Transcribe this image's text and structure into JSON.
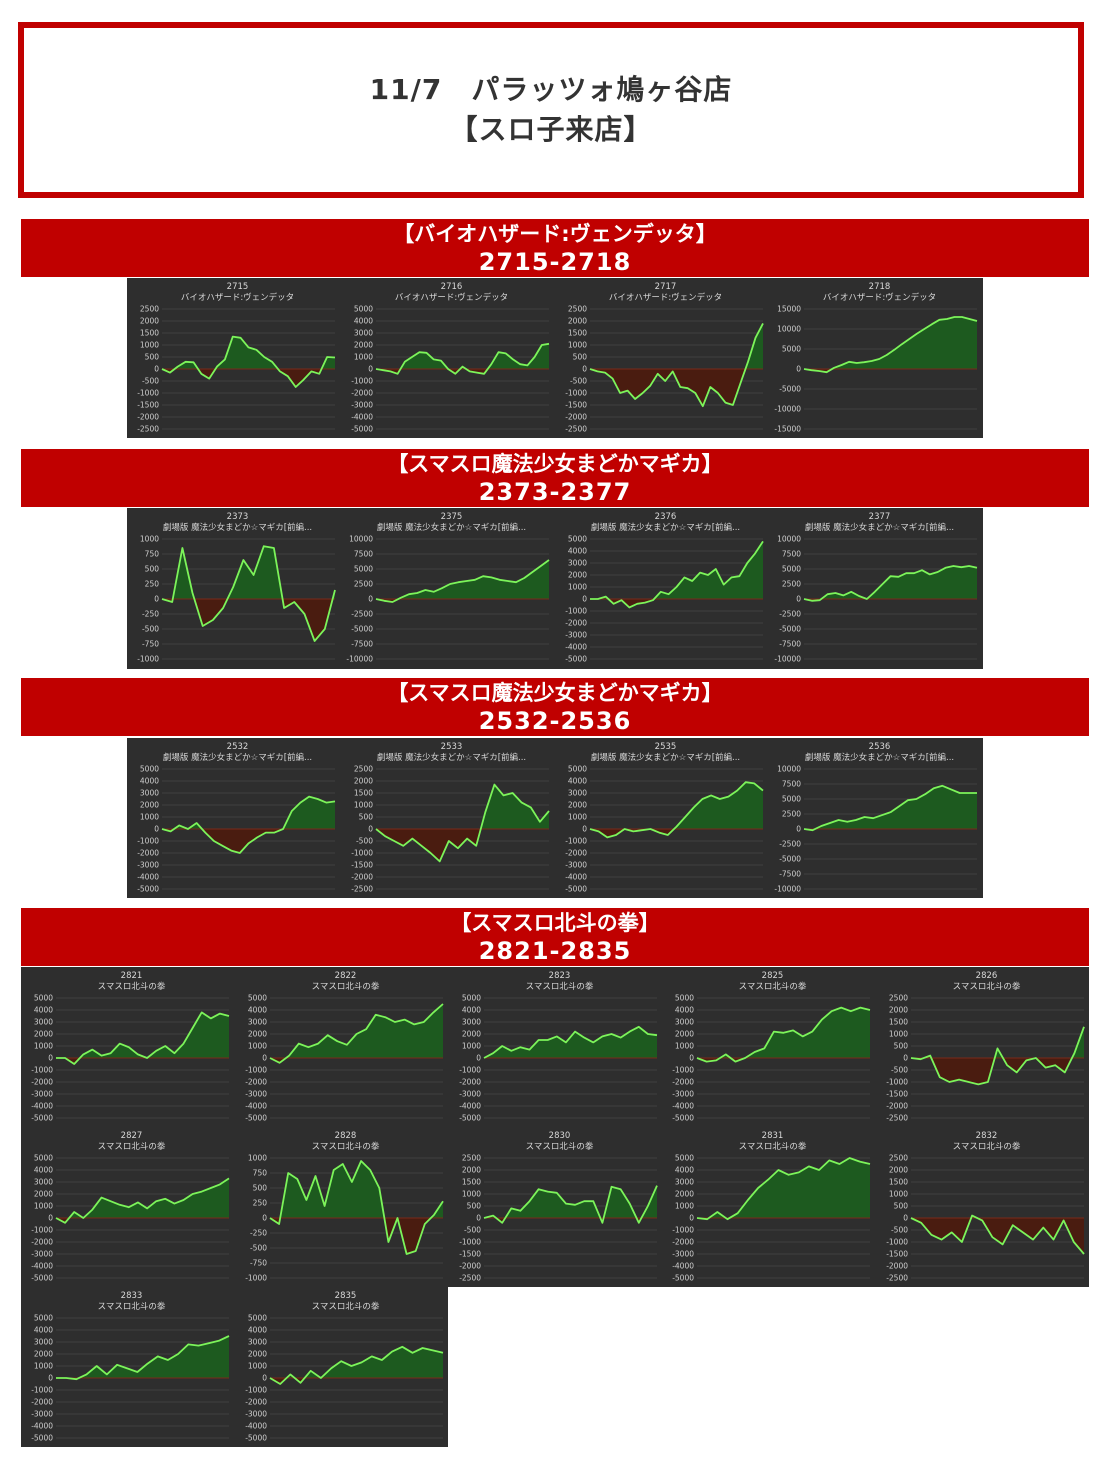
{
  "header": {
    "line1": "11/7　パラッツォ鳩ヶ谷店",
    "line2": "【スロ子来店】"
  },
  "sections": [
    {
      "label": "【バイオハザード:ヴェンデッタ】",
      "range": "2715-2718"
    },
    {
      "label": "【スマスロ魔法少女まどかマギカ】",
      "range": "2373-2377"
    },
    {
      "label": "【スマスロ魔法少女まどかマギカ】",
      "range": "2532-2536"
    },
    {
      "label": "【スマスロ北斗の拳】",
      "range": "2821-2835"
    }
  ],
  "colors": {
    "banner": "#c00000",
    "panel": "#2e2e2e",
    "line": "#7cf45a",
    "fill_pos": "#1d5a1f",
    "fill_neg": "#4a1c10"
  },
  "chart_data": [
    {
      "type": "area",
      "number": "2715",
      "title": "バイオハザード:ヴェンデッタ",
      "ylim": [
        -2500,
        2500
      ],
      "yticks": [
        2500,
        2000,
        1500,
        1000,
        500,
        0,
        -500,
        -1000,
        -1500,
        -2000,
        -2500
      ],
      "values": [
        0,
        -150,
        100,
        300,
        280,
        -200,
        -400,
        100,
        400,
        1350,
        1300,
        900,
        800,
        500,
        300,
        -100,
        -300,
        -750,
        -450,
        -100,
        -200,
        500,
        480
      ]
    },
    {
      "type": "area",
      "number": "2716",
      "title": "バイオハザード:ヴェンデッタ",
      "ylim": [
        -5000,
        5000
      ],
      "yticks": [
        5000,
        4000,
        3000,
        2000,
        1000,
        0,
        -1000,
        -2000,
        -3000,
        -4000,
        -5000
      ],
      "values": [
        0,
        -100,
        -200,
        -400,
        600,
        1000,
        1400,
        1350,
        800,
        700,
        0,
        -400,
        200,
        -200,
        -300,
        -400,
        400,
        1400,
        1300,
        800,
        400,
        300,
        1000,
        2000,
        2100
      ]
    },
    {
      "type": "area",
      "number": "2717",
      "title": "バイオハザード:ヴェンデッタ",
      "ylim": [
        -2500,
        2500
      ],
      "yticks": [
        2500,
        2000,
        1500,
        1000,
        500,
        0,
        -500,
        -1000,
        -1500,
        -2000,
        -2500
      ],
      "values": [
        0,
        -100,
        -150,
        -400,
        -1000,
        -900,
        -1250,
        -1000,
        -700,
        -200,
        -500,
        -100,
        -750,
        -800,
        -1000,
        -1550,
        -750,
        -1000,
        -1400,
        -1500,
        -600,
        300,
        1300,
        1900
      ]
    },
    {
      "type": "area",
      "number": "2718",
      "title": "バイオハザード:ヴェンデッタ",
      "ylim": [
        -15000,
        15000
      ],
      "yticks": [
        15000,
        10000,
        5000,
        0,
        -5000,
        -10000,
        -15000
      ],
      "values": [
        0,
        -300,
        -500,
        -800,
        300,
        1000,
        1800,
        1500,
        1700,
        2000,
        2500,
        3500,
        4800,
        6200,
        7500,
        8800,
        10000,
        11200,
        12300,
        12500,
        13000,
        13000,
        12500,
        12000
      ]
    },
    {
      "type": "area",
      "number": "2373",
      "title": "劇場版 魔法少女まどか☆マギカ[前編...",
      "ylim": [
        -1000,
        1000
      ],
      "yticks": [
        1000,
        750,
        500,
        250,
        0,
        -250,
        -500,
        -750,
        -1000
      ],
      "values": [
        0,
        -50,
        850,
        100,
        -450,
        -350,
        -150,
        200,
        650,
        400,
        880,
        850,
        -150,
        -50,
        -250,
        -700,
        -500,
        150
      ]
    },
    {
      "type": "area",
      "number": "2375",
      "title": "劇場版 魔法少女まどか☆マギカ[前編...",
      "ylim": [
        -10000,
        10000
      ],
      "yticks": [
        10000,
        7500,
        5000,
        2500,
        0,
        -2500,
        -5000,
        -7500,
        -10000
      ],
      "values": [
        0,
        -300,
        -500,
        200,
        800,
        1000,
        1500,
        1200,
        1800,
        2500,
        2800,
        3000,
        3200,
        3800,
        3600,
        3200,
        3000,
        2800,
        3500,
        4500,
        5500,
        6500
      ]
    },
    {
      "type": "area",
      "number": "2376",
      "title": "劇場版 魔法少女まどか☆マギカ[前編...",
      "ylim": [
        -5000,
        5000
      ],
      "yticks": [
        5000,
        4000,
        3000,
        2000,
        1000,
        0,
        -1000,
        -2000,
        -3000,
        -4000,
        -5000
      ],
      "values": [
        0,
        0,
        200,
        -400,
        -100,
        -700,
        -400,
        -300,
        -100,
        600,
        400,
        1000,
        1800,
        1500,
        2200,
        2000,
        2500,
        1200,
        1800,
        1900,
        3000,
        3800,
        4800
      ]
    },
    {
      "type": "area",
      "number": "2377",
      "title": "劇場版 魔法少女まどか☆マギカ[前編...",
      "ylim": [
        -10000,
        10000
      ],
      "yticks": [
        10000,
        7500,
        5000,
        2500,
        0,
        -2500,
        -5000,
        -7500,
        -10000
      ],
      "values": [
        0,
        -300,
        -200,
        800,
        1000,
        600,
        1200,
        500,
        0,
        1200,
        2500,
        3800,
        3700,
        4300,
        4300,
        4800,
        4100,
        4500,
        5200,
        5500,
        5300,
        5500,
        5200
      ]
    },
    {
      "type": "area",
      "number": "2532",
      "title": "劇場版 魔法少女まどか☆マギカ[前編...",
      "ylim": [
        -5000,
        5000
      ],
      "yticks": [
        5000,
        4000,
        3000,
        2000,
        1000,
        0,
        -1000,
        -2000,
        -3000,
        -4000,
        -5000
      ],
      "values": [
        0,
        -200,
        300,
        0,
        500,
        -300,
        -1000,
        -1400,
        -1800,
        -2000,
        -1200,
        -700,
        -300,
        -300,
        0,
        1500,
        2200,
        2700,
        2500,
        2200,
        2300
      ]
    },
    {
      "type": "area",
      "number": "2533",
      "title": "劇場版 魔法少女まどか☆マギカ[前編...",
      "ylim": [
        -2500,
        2500
      ],
      "yticks": [
        2500,
        2000,
        1500,
        1000,
        500,
        0,
        -500,
        -1000,
        -1500,
        -2000,
        -2500
      ],
      "values": [
        0,
        -300,
        -500,
        -700,
        -400,
        -700,
        -1000,
        -1350,
        -500,
        -800,
        -400,
        -700,
        700,
        1850,
        1400,
        1500,
        1100,
        900,
        300,
        750
      ]
    },
    {
      "type": "area",
      "number": "2535",
      "title": "劇場版 魔法少女まどか☆マギカ[前編...",
      "ylim": [
        -5000,
        5000
      ],
      "yticks": [
        5000,
        4000,
        3000,
        2000,
        1000,
        0,
        -1000,
        -2000,
        -3000,
        -4000,
        -5000
      ],
      "values": [
        0,
        -200,
        -700,
        -500,
        0,
        -200,
        -100,
        0,
        -300,
        -500,
        200,
        1000,
        1800,
        2500,
        2800,
        2500,
        2700,
        3200,
        3900,
        3800,
        3200
      ]
    },
    {
      "type": "area",
      "number": "2536",
      "title": "劇場版 魔法少女まどか☆マギカ[前編...",
      "ylim": [
        -10000,
        10000
      ],
      "yticks": [
        10000,
        7500,
        5000,
        2500,
        0,
        -2500,
        -5000,
        -7500,
        -10000
      ],
      "values": [
        0,
        -200,
        500,
        1000,
        1500,
        1200,
        1500,
        2000,
        1800,
        2300,
        2800,
        3800,
        4800,
        5000,
        5800,
        6800,
        7200,
        6600,
        6000,
        6000,
        6000
      ]
    },
    {
      "type": "area",
      "number": "2821",
      "title": "スマスロ北斗の拳",
      "ylim": [
        -5000,
        5000
      ],
      "yticks": [
        5000,
        4000,
        3000,
        2000,
        1000,
        0,
        -1000,
        -2000,
        -3000,
        -4000,
        -5000
      ],
      "values": [
        0,
        0,
        -500,
        300,
        700,
        200,
        400,
        1200,
        900,
        300,
        0,
        600,
        1000,
        400,
        1200,
        2500,
        3800,
        3300,
        3700,
        3500
      ]
    },
    {
      "type": "area",
      "number": "2822",
      "title": "スマスロ北斗の拳",
      "ylim": [
        -5000,
        5000
      ],
      "yticks": [
        5000,
        4000,
        3000,
        2000,
        1000,
        0,
        -1000,
        -2000,
        -3000,
        -4000,
        -5000
      ],
      "values": [
        0,
        -400,
        200,
        1200,
        900,
        1200,
        1900,
        1400,
        1100,
        2000,
        2400,
        3600,
        3400,
        3000,
        3200,
        2800,
        3000,
        3800,
        4500
      ]
    },
    {
      "type": "area",
      "number": "2823",
      "title": "スマスロ北斗の拳",
      "ylim": [
        -5000,
        5000
      ],
      "yticks": [
        5000,
        4000,
        3000,
        2000,
        1000,
        0,
        -1000,
        -2000,
        -3000,
        -4000,
        -5000
      ],
      "values": [
        0,
        400,
        1000,
        600,
        900,
        700,
        1500,
        1500,
        1800,
        1300,
        2200,
        1700,
        1300,
        1800,
        2000,
        1700,
        2200,
        2600,
        2000,
        1900
      ]
    },
    {
      "type": "area",
      "number": "2825",
      "title": "スマスロ北斗の拳",
      "ylim": [
        -5000,
        5000
      ],
      "yticks": [
        5000,
        4000,
        3000,
        2000,
        1000,
        0,
        -1000,
        -2000,
        -3000,
        -4000,
        -5000
      ],
      "values": [
        0,
        -300,
        -200,
        300,
        -300,
        0,
        500,
        800,
        2200,
        2100,
        2300,
        1800,
        2200,
        3200,
        3900,
        4200,
        3900,
        4200,
        4000
      ]
    },
    {
      "type": "area",
      "number": "2826",
      "title": "スマスロ北斗の拳",
      "ylim": [
        -2500,
        2500
      ],
      "yticks": [
        2500,
        2000,
        1500,
        1000,
        500,
        0,
        -500,
        -1000,
        -1500,
        -2000,
        -2500
      ],
      "values": [
        0,
        -50,
        100,
        -800,
        -1000,
        -900,
        -1000,
        -1100,
        -1000,
        400,
        -300,
        -600,
        -100,
        0,
        -400,
        -300,
        -600,
        200,
        1300
      ]
    },
    {
      "type": "area",
      "number": "2827",
      "title": "スマスロ北斗の拳",
      "ylim": [
        -5000,
        5000
      ],
      "yticks": [
        5000,
        4000,
        3000,
        2000,
        1000,
        0,
        -1000,
        -2000,
        -3000,
        -4000,
        -5000
      ],
      "values": [
        0,
        -400,
        500,
        0,
        700,
        1700,
        1400,
        1100,
        900,
        1300,
        800,
        1400,
        1600,
        1200,
        1500,
        2000,
        2200,
        2500,
        2800,
        3300
      ]
    },
    {
      "type": "area",
      "number": "2828",
      "title": "スマスロ北斗の拳",
      "ylim": [
        -1000,
        1000
      ],
      "yticks": [
        1000,
        750,
        500,
        250,
        0,
        -250,
        -500,
        -750,
        -1000
      ],
      "values": [
        0,
        -100,
        750,
        650,
        300,
        700,
        200,
        800,
        900,
        600,
        950,
        800,
        500,
        -400,
        0,
        -600,
        -550,
        -100,
        50,
        280
      ]
    },
    {
      "type": "area",
      "number": "2830",
      "title": "スマスロ北斗の拳",
      "ylim": [
        -2500,
        2500
      ],
      "yticks": [
        2500,
        2000,
        1500,
        1000,
        500,
        0,
        -500,
        -1000,
        -1500,
        -2000,
        -2500
      ],
      "values": [
        0,
        100,
        -200,
        400,
        300,
        700,
        1200,
        1100,
        1050,
        600,
        550,
        700,
        700,
        -200,
        1300,
        1200,
        600,
        -200,
        500,
        1350
      ]
    },
    {
      "type": "area",
      "number": "2831",
      "title": "スマスロ北斗の拳",
      "ylim": [
        -5000,
        5000
      ],
      "yticks": [
        5000,
        4000,
        3000,
        2000,
        1000,
        0,
        -1000,
        -2000,
        -3000,
        -4000,
        -5000
      ],
      "values": [
        0,
        -100,
        500,
        -100,
        400,
        1500,
        2500,
        3200,
        4000,
        3600,
        3800,
        4300,
        4000,
        4800,
        4500,
        5000,
        4700,
        4500
      ]
    },
    {
      "type": "area",
      "number": "2832",
      "title": "スマスロ北斗の拳",
      "ylim": [
        -2500,
        2500
      ],
      "yticks": [
        2500,
        2000,
        1500,
        1000,
        500,
        0,
        -500,
        -1000,
        -1500,
        -2000,
        -2500
      ],
      "values": [
        0,
        -200,
        -700,
        -900,
        -600,
        -1000,
        100,
        -100,
        -800,
        -1100,
        -300,
        -600,
        -900,
        -400,
        -900,
        -100,
        -1000,
        -1500
      ]
    },
    {
      "type": "area",
      "number": "2833",
      "title": "スマスロ北斗の拳",
      "ylim": [
        -5000,
        5000
      ],
      "yticks": [
        5000,
        4000,
        3000,
        2000,
        1000,
        0,
        -1000,
        -2000,
        -3000,
        -4000,
        -5000
      ],
      "values": [
        0,
        0,
        -100,
        300,
        1000,
        300,
        1100,
        800,
        500,
        1200,
        1800,
        1500,
        2000,
        2800,
        2700,
        2900,
        3100,
        3500
      ]
    },
    {
      "type": "area",
      "number": "2835",
      "title": "スマスロ北斗の拳",
      "ylim": [
        -5000,
        5000
      ],
      "yticks": [
        5000,
        4000,
        3000,
        2000,
        1000,
        0,
        -1000,
        -2000,
        -3000,
        -4000,
        -5000
      ],
      "values": [
        0,
        -500,
        300,
        -400,
        600,
        0,
        800,
        1400,
        1000,
        1300,
        1800,
        1500,
        2200,
        2600,
        2100,
        2500,
        2300,
        2100
      ]
    }
  ]
}
